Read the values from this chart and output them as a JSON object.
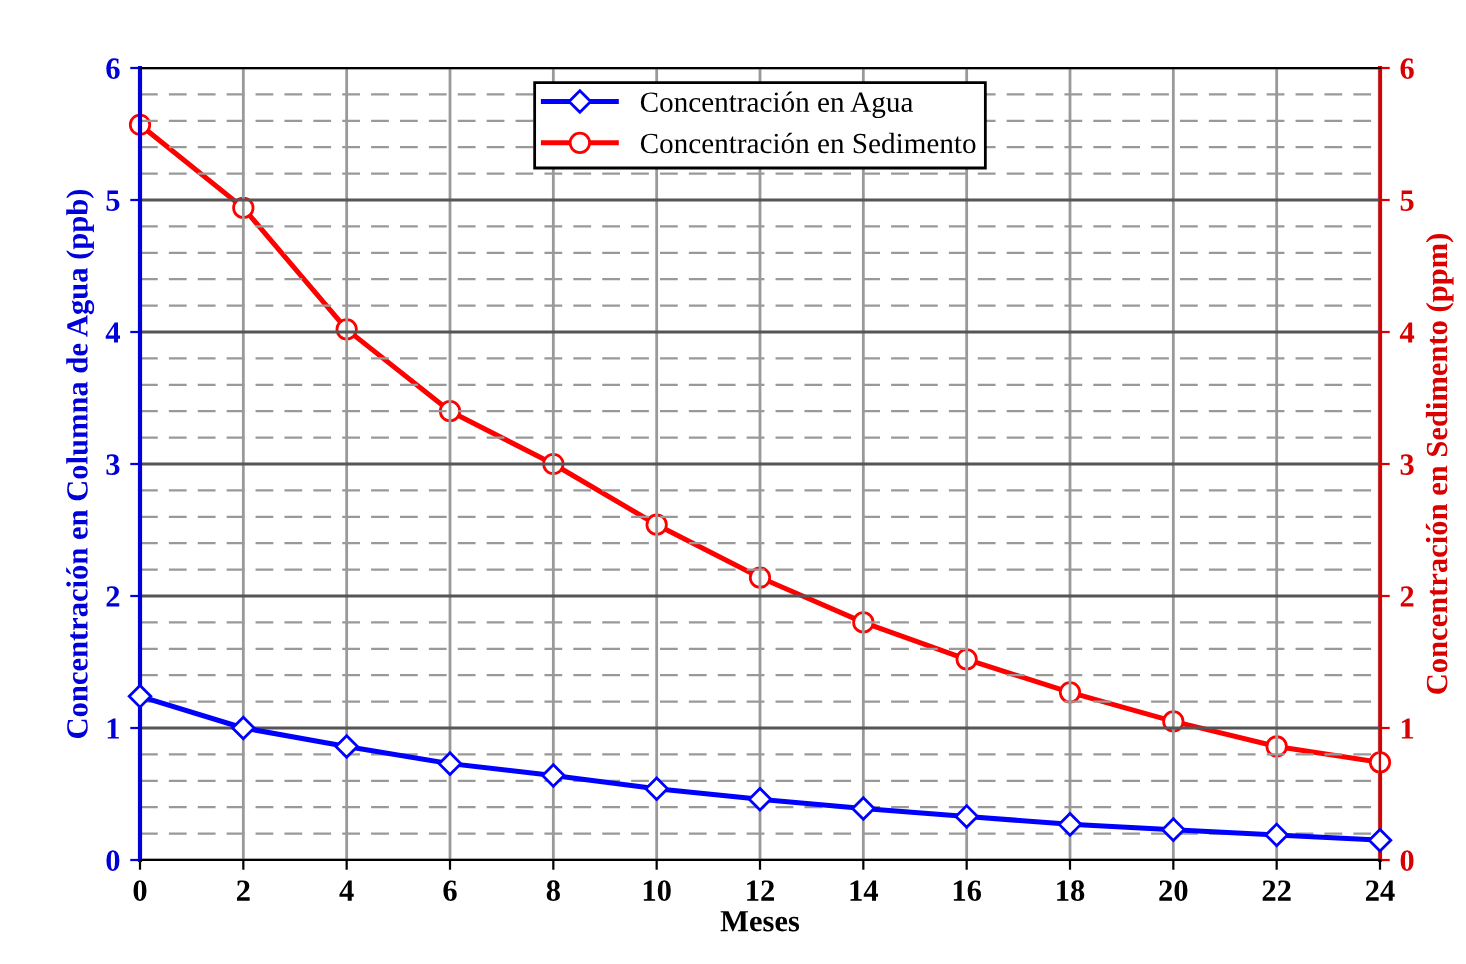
{
  "chart_data": {
    "type": "line",
    "xlabel": "Meses",
    "ylabel": "Concentración en Columna de Agua (ppb)",
    "y2label": "Concentración en Sedimento (ppm)",
    "x": [
      0,
      2,
      4,
      6,
      8,
      10,
      12,
      14,
      16,
      18,
      20,
      22,
      24
    ],
    "series": [
      {
        "name": "Concentración en Agua",
        "color": "#0000ff",
        "marker": "diamond",
        "values": [
          1.24,
          1.0,
          0.86,
          0.73,
          0.64,
          0.54,
          0.46,
          0.39,
          0.33,
          0.27,
          0.23,
          0.19,
          0.15
        ]
      },
      {
        "name": "Concentración en Sedimento",
        "color": "#ff0000",
        "marker": "circle",
        "axis": "y2",
        "values": [
          5.57,
          4.94,
          4.02,
          3.4,
          3.0,
          2.54,
          2.14,
          1.8,
          1.52,
          1.27,
          1.05,
          0.86,
          0.74
        ]
      }
    ],
    "xlim": [
      0,
      24
    ],
    "xticks": [
      0,
      2,
      4,
      6,
      8,
      10,
      12,
      14,
      16,
      18,
      20,
      22,
      24
    ],
    "ylim": [
      0,
      6
    ],
    "yticks": [
      0,
      1,
      2,
      3,
      4,
      5,
      6
    ],
    "y2lim": [
      0,
      6
    ],
    "y2ticks": [
      0,
      1,
      2,
      3,
      4,
      5,
      6
    ],
    "grid": true,
    "legend": "top"
  }
}
